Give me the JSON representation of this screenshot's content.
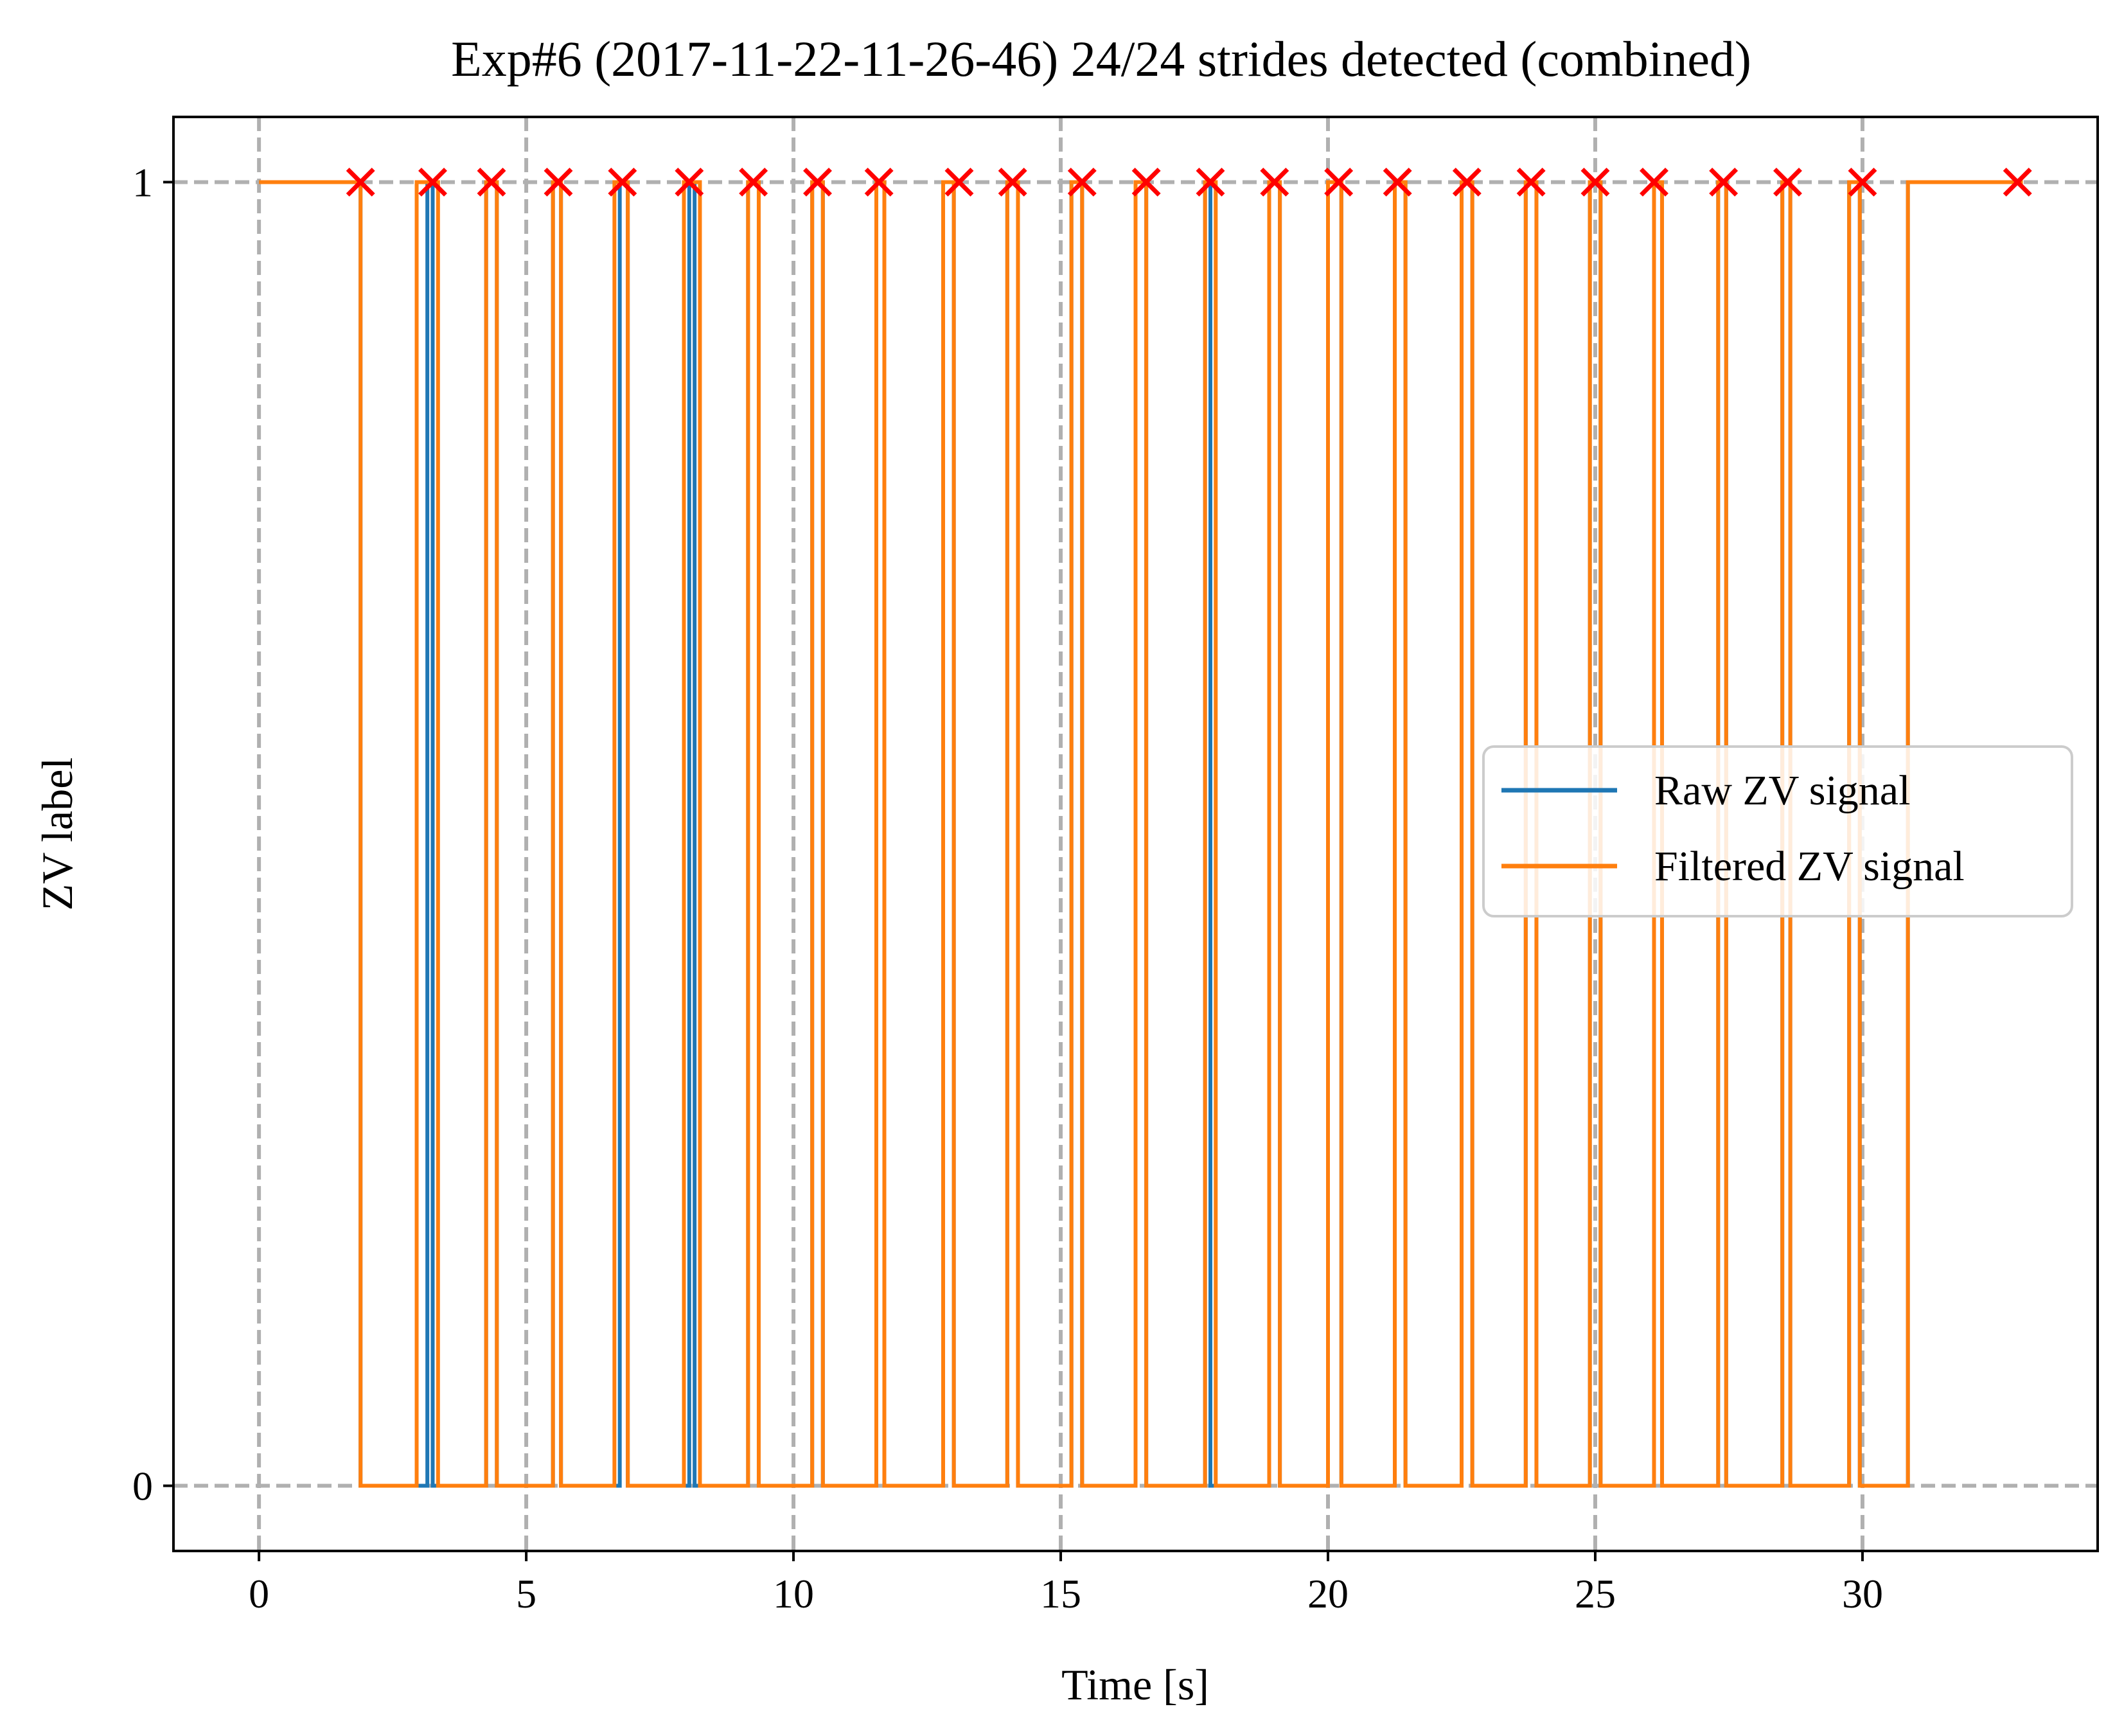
{
  "chart_data": {
    "type": "line",
    "title": "Exp#6 (2017-11-22-11-26-46) 24/24 strides detected (combined)",
    "xlabel": "Time [s]",
    "ylabel": "ZV label",
    "xlim": [
      -1.6,
      34.4
    ],
    "ylim": [
      -0.05,
      1.05
    ],
    "xticks": [
      0,
      5,
      10,
      15,
      20,
      25,
      30
    ],
    "xtick_labels": [
      "0",
      "5",
      "10",
      "15",
      "20",
      "25",
      "30"
    ],
    "yticks": [
      0,
      1
    ],
    "ytick_labels": [
      "0",
      "1"
    ],
    "grid": true,
    "legend_position": "center-right",
    "colors": {
      "raw": "#1f77b4",
      "filtered": "#ff7f0e",
      "markers": "#ff0000",
      "grid": "#b0b0b0",
      "axes": "#000000"
    },
    "series": [
      {
        "name": "Raw ZV signal",
        "kind": "step",
        "zero_intervals": [
          [
            1.9,
            3.15
          ],
          [
            3.25,
            4.25
          ],
          [
            4.45,
            5.5
          ],
          [
            5.65,
            6.75
          ],
          [
            6.9,
            8.05
          ],
          [
            8.15,
            9.15
          ],
          [
            9.35,
            10.35
          ],
          [
            10.55,
            11.55
          ],
          [
            11.7,
            12.8
          ],
          [
            13.0,
            14.0
          ],
          [
            14.2,
            15.2
          ],
          [
            15.4,
            16.4
          ],
          [
            16.6,
            17.7
          ],
          [
            17.8,
            18.9
          ],
          [
            19.1,
            20.0
          ],
          [
            20.25,
            21.25
          ],
          [
            21.45,
            22.5
          ],
          [
            22.7,
            23.7
          ],
          [
            23.9,
            24.9
          ],
          [
            25.1,
            26.1
          ],
          [
            26.25,
            27.3
          ],
          [
            27.45,
            28.5
          ],
          [
            28.65,
            29.75
          ],
          [
            29.95,
            30.85
          ]
        ],
        "x_end": 33.0
      },
      {
        "name": "Filtered ZV signal",
        "kind": "step",
        "zero_intervals": [
          [
            1.9,
            2.95
          ],
          [
            3.35,
            4.25
          ],
          [
            4.45,
            5.5
          ],
          [
            5.65,
            6.65
          ],
          [
            6.9,
            7.95
          ],
          [
            8.25,
            9.15
          ],
          [
            9.35,
            10.35
          ],
          [
            10.55,
            11.55
          ],
          [
            11.7,
            12.8
          ],
          [
            13.0,
            14.0
          ],
          [
            14.2,
            15.2
          ],
          [
            15.4,
            16.4
          ],
          [
            16.6,
            17.7
          ],
          [
            17.9,
            18.9
          ],
          [
            19.1,
            20.0
          ],
          [
            20.25,
            21.25
          ],
          [
            21.45,
            22.5
          ],
          [
            22.7,
            23.7
          ],
          [
            23.9,
            24.9
          ],
          [
            25.1,
            26.1
          ],
          [
            26.25,
            27.3
          ],
          [
            27.45,
            28.5
          ],
          [
            28.65,
            29.75
          ],
          [
            29.95,
            30.85
          ]
        ],
        "x_end": 33.0
      }
    ],
    "stride_markers": {
      "name": "detected strides",
      "marker": "x",
      "y": 1,
      "x": [
        1.9,
        3.25,
        4.35,
        5.6,
        6.8,
        8.05,
        9.25,
        10.45,
        11.6,
        13.1,
        14.1,
        15.4,
        16.6,
        17.8,
        19.0,
        20.2,
        21.3,
        22.6,
        23.8,
        25.0,
        26.1,
        27.4,
        28.6,
        30.0,
        32.9
      ]
    }
  }
}
